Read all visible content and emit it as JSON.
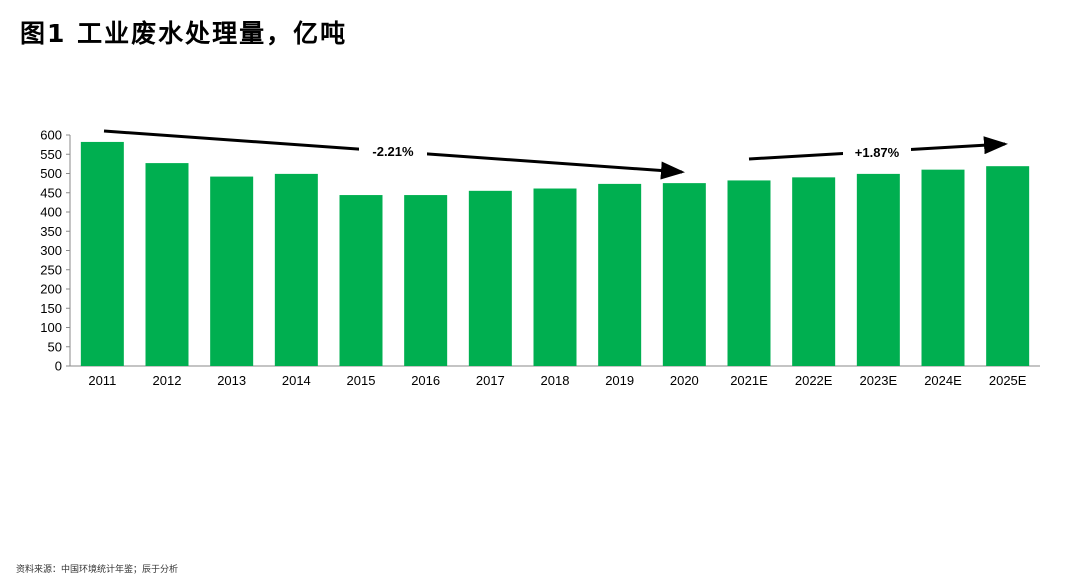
{
  "chart_data": {
    "type": "bar",
    "title": "图1  工业废水处理量，亿吨",
    "categories": [
      "2011",
      "2012",
      "2013",
      "2014",
      "2015",
      "2016",
      "2017",
      "2018",
      "2019",
      "2020",
      "2021E",
      "2022E",
      "2023E",
      "2024E",
      "2025E"
    ],
    "values": [
      582,
      527,
      492,
      499,
      444,
      444,
      455,
      461,
      473,
      475,
      482,
      490,
      499,
      510,
      519
    ],
    "ylim": [
      0,
      600
    ],
    "yticks": [
      0,
      50,
      100,
      150,
      200,
      250,
      300,
      350,
      400,
      450,
      500,
      550,
      600
    ],
    "grid": false,
    "bar_color": "#00AF50",
    "annotations": [
      {
        "text": "-2.21%",
        "from": "2011",
        "to": "2020"
      },
      {
        "text": "+1.87%",
        "from": "2021E",
        "to": "2025E"
      }
    ]
  },
  "source": "资料来源：中国环境统计年鉴；辰于分析"
}
